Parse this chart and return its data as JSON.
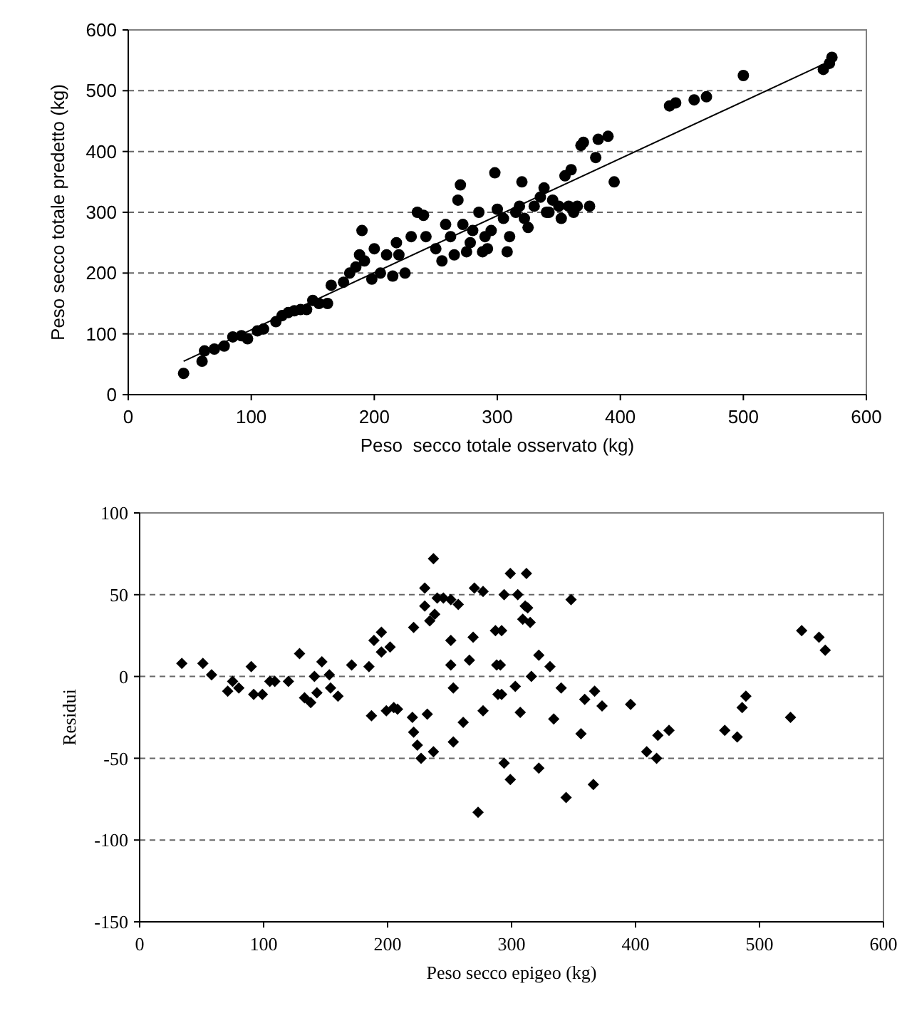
{
  "chart_data": [
    {
      "type": "scatter",
      "xlabel": "Peso  secco totale osservato (kg)",
      "ylabel": "Peso secco totale predetto (kg)",
      "xlim": [
        0,
        600
      ],
      "xticks": [
        0,
        100,
        200,
        300,
        400,
        500,
        600
      ],
      "ylim": [
        0,
        600
      ],
      "yticks": [
        0,
        100,
        200,
        300,
        400,
        500,
        600
      ],
      "grid": "y",
      "series": [
        {
          "color": "#000000",
          "marker": "circle",
          "x": [
            45,
            60,
            62,
            70,
            78,
            85,
            92,
            97,
            105,
            110,
            120,
            125,
            130,
            135,
            140,
            145,
            150,
            155,
            162,
            165,
            175,
            180,
            185,
            188,
            190,
            192,
            198,
            200,
            205,
            210,
            215,
            218,
            220,
            225,
            230,
            235,
            240,
            242,
            250,
            255,
            258,
            262,
            265,
            268,
            270,
            272,
            275,
            278,
            280,
            285,
            288,
            290,
            292,
            295,
            298,
            300,
            305,
            308,
            310,
            315,
            318,
            320,
            322,
            325,
            330,
            335,
            338,
            340,
            342,
            345,
            350,
            352,
            355,
            358,
            360,
            362,
            365,
            368,
            370,
            375,
            380,
            382,
            390,
            395,
            440,
            445,
            460,
            470,
            500,
            565,
            570,
            572
          ],
          "values": [
            35,
            55,
            72,
            75,
            80,
            95,
            97,
            92,
            105,
            108,
            120,
            130,
            135,
            138,
            140,
            140,
            155,
            150,
            150,
            180,
            185,
            200,
            210,
            230,
            270,
            220,
            190,
            240,
            200,
            230,
            195,
            250,
            230,
            200,
            260,
            300,
            295,
            260,
            240,
            220,
            280,
            260,
            230,
            320,
            345,
            280,
            235,
            250,
            270,
            300,
            235,
            260,
            240,
            270,
            365,
            305,
            290,
            235,
            260,
            300,
            310,
            350,
            290,
            275,
            310,
            325,
            340,
            300,
            300,
            320,
            310,
            290,
            360,
            310,
            370,
            300,
            310,
            410,
            415,
            310,
            390,
            420,
            425,
            350,
            475,
            480,
            485,
            490,
            525,
            535,
            545,
            555
          ]
        },
        {
          "type": "line",
          "color": "#000000",
          "x": [
            45,
            572
          ],
          "values": [
            55,
            550
          ]
        }
      ]
    },
    {
      "type": "scatter",
      "xlabel": "Peso secco epigeo (kg)",
      "ylabel": "Residui",
      "xlim": [
        0,
        600
      ],
      "xticks": [
        0,
        100,
        200,
        300,
        400,
        500,
        600
      ],
      "ylim": [
        -150,
        100
      ],
      "yticks": [
        -150,
        -100,
        -50,
        0,
        50,
        100
      ],
      "grid": "y",
      "marker": "diamond",
      "series": [
        {
          "color": "#000000",
          "x": [
            34,
            51,
            58,
            71,
            75,
            80,
            90,
            92,
            99,
            105,
            109,
            120,
            129,
            133,
            138,
            141,
            143,
            147,
            153,
            154,
            160,
            171,
            185,
            187,
            189,
            195,
            195,
            202,
            199,
            205,
            208,
            220,
            221,
            221,
            224,
            227,
            230,
            230,
            232,
            234,
            237,
            237,
            238,
            240,
            245,
            251,
            251,
            251,
            253,
            253,
            257,
            261,
            266,
            269,
            270,
            273,
            277,
            277,
            287,
            288,
            289,
            292,
            294,
            291,
            292,
            294,
            299,
            299,
            303,
            305,
            307,
            309,
            312,
            311,
            313,
            315,
            316,
            322,
            322,
            331,
            334,
            340,
            344,
            348,
            356,
            359,
            367,
            366,
            373,
            396,
            409,
            417,
            418,
            427,
            472,
            482,
            486,
            489,
            525,
            534,
            548,
            553
          ],
          "values": [
            8,
            8,
            1,
            -9,
            -3,
            -7,
            6,
            -11,
            -11,
            -3,
            -3,
            -3,
            14,
            -13,
            -16,
            0,
            -10,
            9,
            1,
            -7,
            -12,
            7,
            6,
            -24,
            22,
            27,
            15,
            18,
            -21,
            -19,
            -20,
            -25,
            30,
            -34,
            -42,
            -50,
            54,
            43,
            -23,
            34,
            72,
            -46,
            38,
            48,
            48,
            47,
            22,
            7,
            -7,
            -40,
            44,
            -28,
            10,
            24,
            54,
            -83,
            52,
            -21,
            28,
            7,
            -11,
            28,
            50,
            7,
            -11,
            -53,
            -63,
            63,
            -6,
            50,
            -22,
            35,
            63,
            43,
            42,
            33,
            0,
            13,
            -56,
            6,
            -26,
            -7,
            -74,
            47,
            -35,
            -14,
            -9,
            -66,
            -18,
            -17,
            -46,
            -50,
            -36,
            -33,
            -33,
            -37,
            -19,
            -12,
            -25,
            28,
            24,
            16
          ]
        }
      ]
    }
  ]
}
